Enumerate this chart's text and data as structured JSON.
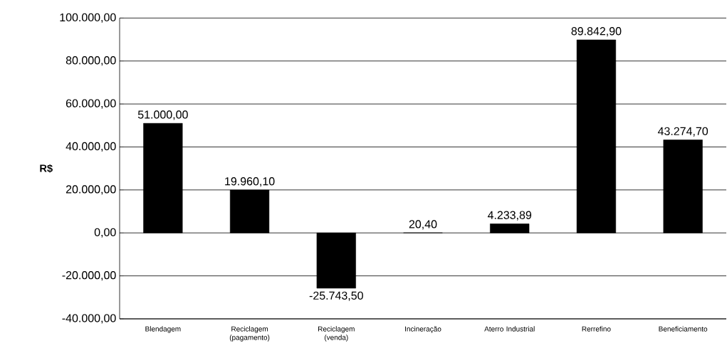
{
  "chart_data": {
    "type": "bar",
    "ylabel": "R$",
    "categories": [
      "Blendagem",
      "Reciclagem (pagamento)",
      "Reciclagem (venda)",
      "Incineração",
      "Aterro Industrial",
      "Rerrefino",
      "Beneficiamento"
    ],
    "values": [
      51000,
      19960.1,
      -25743.5,
      20.4,
      4233.89,
      89842.9,
      43274.7
    ],
    "value_labels": [
      "51.000,00",
      "19.960,10",
      "-25.743,50",
      "20,40",
      "4.233,89",
      "89.842,90",
      "43.274,70"
    ],
    "color": "#000000",
    "ylim": [
      -40000,
      100000
    ],
    "yticks": [
      {
        "value": -40000,
        "label": "-40.000,00"
      },
      {
        "value": -20000,
        "label": "-20.000,00"
      },
      {
        "value": 0,
        "label": "0,00"
      },
      {
        "value": 20000,
        "label": "20.000,00"
      },
      {
        "value": 40000,
        "label": "40.000,00"
      },
      {
        "value": 60000,
        "label": "60.000,00"
      },
      {
        "value": 80000,
        "label": "80.000,00"
      },
      {
        "value": 100000,
        "label": "100.000,00"
      }
    ],
    "grid": "y"
  }
}
